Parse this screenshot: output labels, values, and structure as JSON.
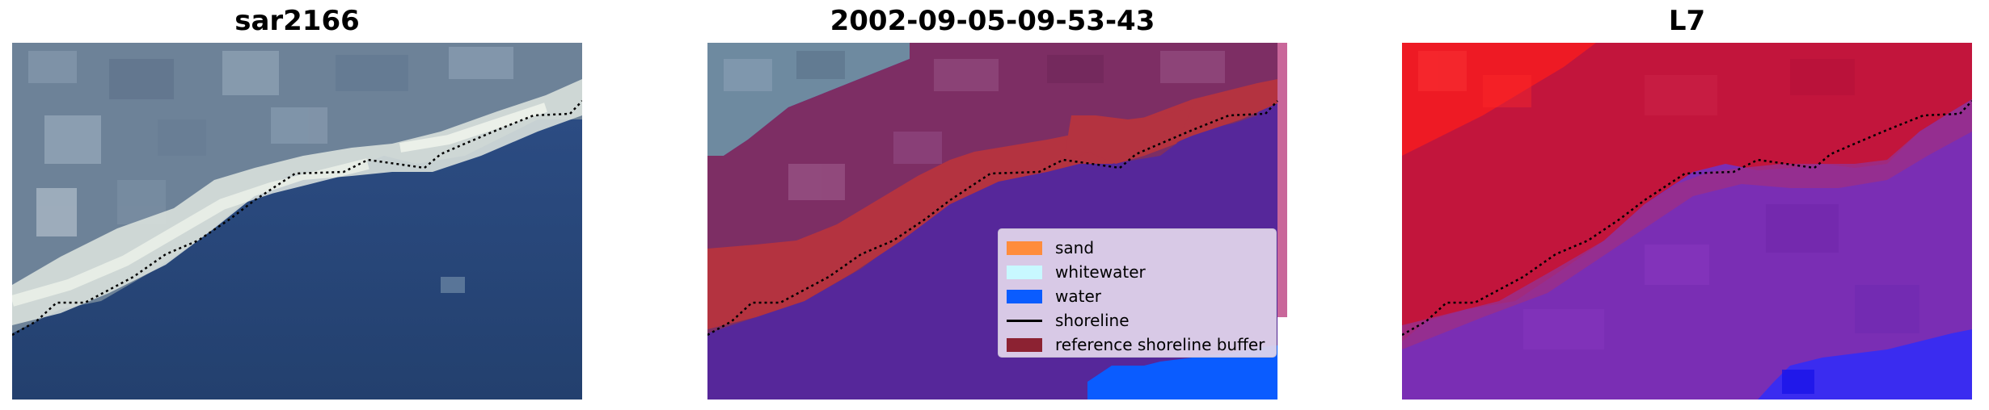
{
  "panels": [
    {
      "title": "sar2166"
    },
    {
      "title": "2002-09-05-09-53-43"
    },
    {
      "title": "L7"
    }
  ],
  "legend": {
    "items": [
      {
        "label": "sand",
        "color": "#ff8c3c",
        "kind": "patch"
      },
      {
        "label": "whitewater",
        "color": "#c8f8ff",
        "kind": "patch"
      },
      {
        "label": "water",
        "color": "#0a5cff",
        "kind": "patch"
      },
      {
        "label": "shoreline",
        "color": "#000000",
        "kind": "line"
      },
      {
        "label": "reference shoreline buffer",
        "color": "#8c2232",
        "kind": "patch"
      }
    ]
  }
}
